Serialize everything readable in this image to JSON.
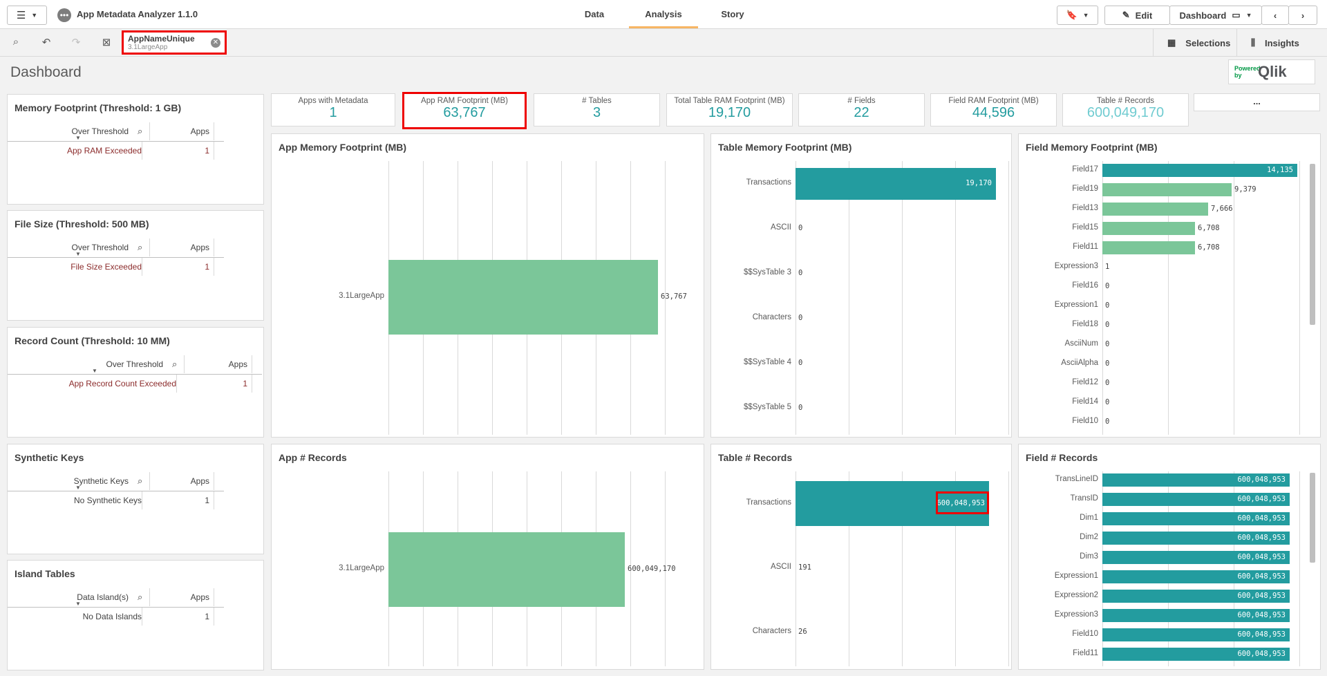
{
  "app": {
    "title": "App Metadata Analyzer 1.1.0"
  },
  "nav": {
    "tabs": [
      "Data",
      "Analysis",
      "Story"
    ]
  },
  "toolbar": {
    "edit": "Edit",
    "sheet": "Dashboard"
  },
  "selections": {
    "field": "AppNameUnique",
    "value": "3.1LargeApp",
    "selections_label": "Selections",
    "insights_label": "Insights"
  },
  "sheet_title": "Dashboard",
  "logo": {
    "powered": "Powered by",
    "brand": "Qlik"
  },
  "side_tables": [
    {
      "title": "Memory Footprint (Threshold: 1 GB)",
      "dim": "Over Threshold",
      "measure": "Apps",
      "row": "App RAM Exceeded",
      "count": "1"
    },
    {
      "title": "File Size (Threshold: 500 MB)",
      "dim": "Over Threshold",
      "measure": "Apps",
      "row": "File Size Exceeded",
      "count": "1"
    },
    {
      "title": "Record Count (Threshold: 10 MM)",
      "dim": "Over Threshold",
      "measure": "Apps",
      "row": "App Record Count Exceeded",
      "count": "1"
    },
    {
      "title": "Synthetic Keys",
      "dim": "Synthetic Keys",
      "measure": "Apps",
      "row": "No Synthetic Keys",
      "count": "1"
    },
    {
      "title": "Island Tables",
      "dim": "Data Island(s)",
      "measure": "Apps",
      "row": "No Data Islands",
      "count": "1"
    }
  ],
  "kpis": [
    {
      "label": "Apps with Metadata",
      "value": "1"
    },
    {
      "label": "App RAM Footprint (MB)",
      "value": "63,767"
    },
    {
      "label": "# Tables",
      "value": "3"
    },
    {
      "label": "Total Table RAM Footprint (MB)",
      "value": "19,170"
    },
    {
      "label": "# Fields",
      "value": "22"
    },
    {
      "label": "Field RAM Footprint (MB)",
      "value": "44,596"
    },
    {
      "label": "Table # Records",
      "value": "600,049,170"
    }
  ],
  "more_button": "...",
  "colors": {
    "teal": "#239c9f",
    "green": "#7bc699",
    "highlight": "#e00000"
  },
  "chart_data": [
    {
      "type": "bar",
      "title": "App Memory Footprint (MB)",
      "categories": [
        "3.1LargeApp"
      ],
      "values": [
        63767
      ],
      "labels": [
        "63,767"
      ]
    },
    {
      "type": "bar",
      "title": "Table Memory Footprint (MB)",
      "categories": [
        "Transactions",
        "ASCII",
        "$$SysTable 3",
        "Characters",
        "$$SysTable 4",
        "$$SysTable 5"
      ],
      "values": [
        19170,
        0,
        0,
        0,
        0,
        0
      ],
      "labels": [
        "19,170",
        "0",
        "0",
        "0",
        "0",
        "0"
      ]
    },
    {
      "type": "bar",
      "title": "Field Memory Footprint (MB)",
      "categories": [
        "Field17",
        "Field19",
        "Field13",
        "Field15",
        "Field11",
        "Expression3",
        "Field16",
        "Expression1",
        "Field18",
        "AsciiNum",
        "AsciiAlpha",
        "Field12",
        "Field14",
        "Field10"
      ],
      "values": [
        14135,
        9379,
        7666,
        6708,
        6708,
        1,
        0,
        0,
        0,
        0,
        0,
        0,
        0,
        0
      ],
      "labels": [
        "14,135",
        "9,379",
        "7,666",
        "6,708",
        "6,708",
        "1",
        "0",
        "0",
        "0",
        "0",
        "0",
        "0",
        "0",
        "0"
      ]
    },
    {
      "type": "bar",
      "title": "App # Records",
      "categories": [
        "3.1LargeApp"
      ],
      "values": [
        600049170
      ],
      "labels": [
        "600,049,170"
      ]
    },
    {
      "type": "bar",
      "title": "Table # Records",
      "categories": [
        "Transactions",
        "ASCII",
        "Characters"
      ],
      "values": [
        600048953,
        191,
        26
      ],
      "labels": [
        "600,048,953",
        "191",
        "26"
      ]
    },
    {
      "type": "bar",
      "title": "Field # Records",
      "categories": [
        "TransLineID",
        "TransID",
        "Dim1",
        "Dim2",
        "Dim3",
        "Expression1",
        "Expression2",
        "Expression3",
        "Field10",
        "Field11"
      ],
      "values": [
        600048953,
        600048953,
        600048953,
        600048953,
        600048953,
        600048953,
        600048953,
        600048953,
        600048953,
        600048953
      ],
      "labels": [
        "600,048,953",
        "600,048,953",
        "600,048,953",
        "600,048,953",
        "600,048,953",
        "600,048,953",
        "600,048,953",
        "600,048,953",
        "600,048,953",
        "600,048,953"
      ]
    }
  ]
}
